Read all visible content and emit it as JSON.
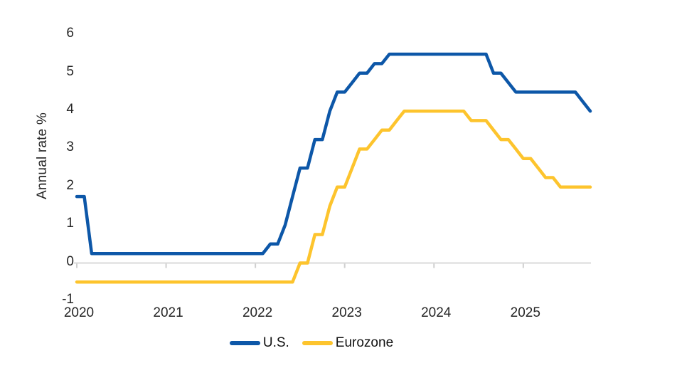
{
  "chart_data": {
    "type": "line",
    "ylabel": "Annual rate %",
    "x_tick_labels": [
      "2020",
      "2021",
      "2022",
      "2023",
      "2024",
      "2025"
    ],
    "y_ticks": [
      6,
      5,
      4,
      3,
      2,
      1,
      0,
      -1
    ],
    "ylim": [
      -1,
      6
    ],
    "x_range": {
      "start": "2020-01",
      "end": "2025-10",
      "frequency": "monthly"
    },
    "grid": "zero-baseline-only",
    "legend_position": "bottom-center",
    "series": [
      {
        "name": "U.S.",
        "color": "#0d57a8",
        "values": [
          1.75,
          1.75,
          0.25,
          0.25,
          0.25,
          0.25,
          0.25,
          0.25,
          0.25,
          0.25,
          0.25,
          0.25,
          0.25,
          0.25,
          0.25,
          0.25,
          0.25,
          0.25,
          0.25,
          0.25,
          0.25,
          0.25,
          0.25,
          0.25,
          0.25,
          0.25,
          0.5,
          0.5,
          1.0,
          1.75,
          2.5,
          2.5,
          3.25,
          3.25,
          4.0,
          4.5,
          4.5,
          4.75,
          5.0,
          5.0,
          5.25,
          5.25,
          5.5,
          5.5,
          5.5,
          5.5,
          5.5,
          5.5,
          5.5,
          5.5,
          5.5,
          5.5,
          5.5,
          5.5,
          5.5,
          5.5,
          5.0,
          5.0,
          4.75,
          4.5,
          4.5,
          4.5,
          4.5,
          4.5,
          4.5,
          4.5,
          4.5,
          4.5,
          4.25,
          4.0
        ]
      },
      {
        "name": "Eurozone",
        "color": "#fdc42d",
        "values": [
          -0.5,
          -0.5,
          -0.5,
          -0.5,
          -0.5,
          -0.5,
          -0.5,
          -0.5,
          -0.5,
          -0.5,
          -0.5,
          -0.5,
          -0.5,
          -0.5,
          -0.5,
          -0.5,
          -0.5,
          -0.5,
          -0.5,
          -0.5,
          -0.5,
          -0.5,
          -0.5,
          -0.5,
          -0.5,
          -0.5,
          -0.5,
          -0.5,
          -0.5,
          -0.5,
          0.0,
          0.0,
          0.75,
          0.75,
          1.5,
          2.0,
          2.0,
          2.5,
          3.0,
          3.0,
          3.25,
          3.5,
          3.5,
          3.75,
          4.0,
          4.0,
          4.0,
          4.0,
          4.0,
          4.0,
          4.0,
          4.0,
          4.0,
          3.75,
          3.75,
          3.75,
          3.5,
          3.25,
          3.25,
          3.0,
          2.75,
          2.75,
          2.5,
          2.25,
          2.25,
          2.0,
          2.0,
          2.0,
          2.0,
          2.0
        ]
      }
    ],
    "colors": {
      "baseline": "#d9d9d9",
      "tick": "#d0d0d0",
      "text": "#262626"
    }
  },
  "legend": {
    "items": [
      {
        "label": "U.S."
      },
      {
        "label": "Eurozone"
      }
    ]
  }
}
